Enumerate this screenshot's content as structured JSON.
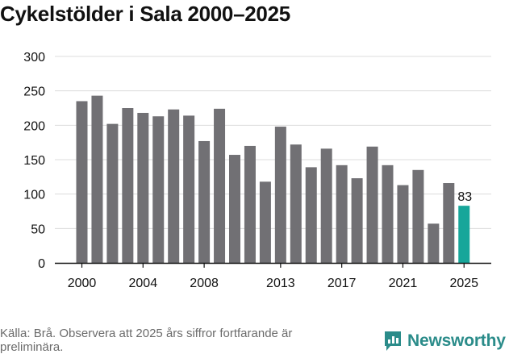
{
  "page": {
    "title": "Cykelstölder i Sala 2000–2025",
    "footer": "Källa: Brå. Observera att 2025 års siffror fortfarande är preliminära.",
    "brand": "Newsworthy"
  },
  "colors": {
    "bar": "#717074",
    "highlight": "#17a69a",
    "grid": "#dcdcdc",
    "axis": "#111111",
    "brand": "#2b8c8a"
  },
  "chart_data": {
    "type": "bar",
    "title": "Cykelstölder i Sala 2000–2025",
    "xlabel": "",
    "ylabel": "",
    "ylim": [
      0,
      300
    ],
    "yticks": [
      0,
      50,
      100,
      150,
      200,
      250,
      300
    ],
    "categories": [
      "2000",
      "2001",
      "2002",
      "2003",
      "2004",
      "2005",
      "2006",
      "2007",
      "2008",
      "2009",
      "2010",
      "2011",
      "2012",
      "2013",
      "2014",
      "2015",
      "2016",
      "2017",
      "2018",
      "2019",
      "2020",
      "2021",
      "2022",
      "2023",
      "2024",
      "2025"
    ],
    "values": [
      235,
      243,
      202,
      225,
      218,
      213,
      223,
      214,
      177,
      224,
      157,
      170,
      118,
      198,
      172,
      139,
      166,
      142,
      123,
      169,
      142,
      113,
      135,
      57,
      116,
      83
    ],
    "xtick_labels": [
      "2000",
      "2004",
      "2008",
      "2013",
      "2017",
      "2021",
      "2025"
    ],
    "highlight_category": "2025",
    "highlight_label": "83",
    "grid": true
  }
}
